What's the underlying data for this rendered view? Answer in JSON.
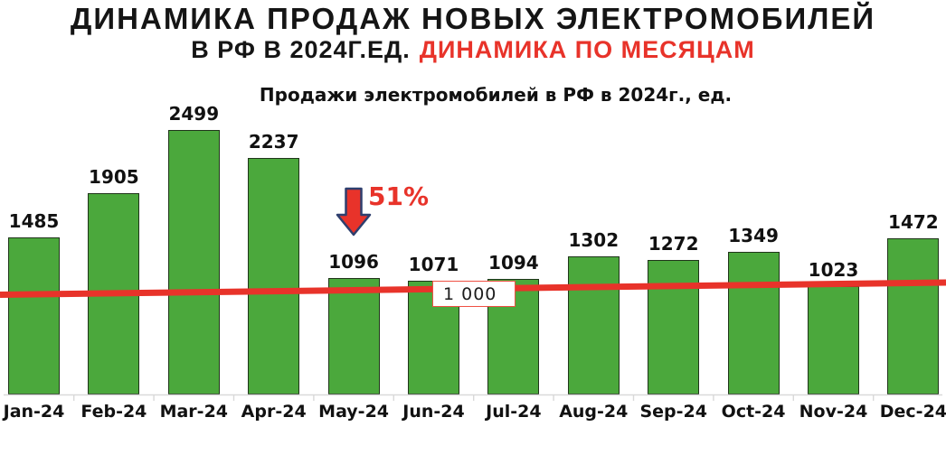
{
  "header": {
    "title_line1": "ДИНАМИКА ПРОДАЖ НОВЫХ ЭЛЕКТРОМОБИЛЕЙ",
    "title_line2_black": "В РФ В 2024Г.ЕД.",
    "title_line2_red": "ДИНАМИКА ПО МЕСЯЦАМ",
    "accent_color": "#e8332a"
  },
  "chart_data": {
    "type": "bar",
    "title": "Продажи электромобилей в РФ в 2024г., ед.",
    "categories": [
      "Jan-24",
      "Feb-24",
      "Mar-24",
      "Apr-24",
      "May-24",
      "Jun-24",
      "Jul-24",
      "Aug-24",
      "Sep-24",
      "Oct-24",
      "Nov-24",
      "Dec-24"
    ],
    "values": [
      1485,
      1905,
      2499,
      2237,
      1096,
      1071,
      1094,
      1302,
      1272,
      1349,
      1023,
      1472
    ],
    "xlabel": "",
    "ylabel": "",
    "ylim": [
      0,
      2600
    ],
    "grid": false,
    "legend": "none",
    "bar_color": "#4ba83c",
    "bar_border_color": "#20351a",
    "axis_color": "#d9d9d9",
    "reference_line": {
      "value": 1000,
      "label": "1 000",
      "color": "#e8332a",
      "box_border_color": "#ef5044"
    },
    "annotation": {
      "text": "51%",
      "icon": "down-arrow",
      "color": "#e8332a",
      "arrow_outline_color": "#2e3f6e"
    }
  }
}
